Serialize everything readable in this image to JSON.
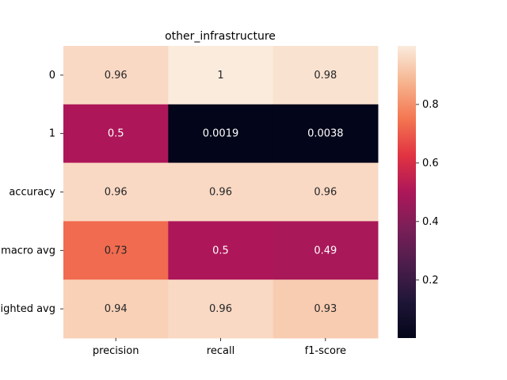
{
  "chart_data": {
    "type": "heatmap",
    "title": "other_infrastructure",
    "xlabel": "",
    "ylabel": "",
    "columns": [
      "precision",
      "recall",
      "f1-score"
    ],
    "rows": [
      "0",
      "1",
      "accuracy",
      "macro avg",
      "weighted avg"
    ],
    "values": [
      [
        0.96,
        1,
        0.98
      ],
      [
        0.5,
        0.0019,
        0.0038
      ],
      [
        0.96,
        0.96,
        0.96
      ],
      [
        0.73,
        0.5,
        0.49
      ],
      [
        0.94,
        0.96,
        0.93
      ]
    ],
    "labels": [
      [
        "0.96",
        "1",
        "0.98"
      ],
      [
        "0.5",
        "0.0019",
        "0.0038"
      ],
      [
        "0.96",
        "0.96",
        "0.96"
      ],
      [
        "0.73",
        "0.5",
        "0.49"
      ],
      [
        "0.94",
        "0.96",
        "0.93"
      ]
    ],
    "colormap": "rocket",
    "colorbar": {
      "range": [
        0.0019,
        1
      ],
      "ticks": [
        0.2,
        0.4,
        0.6,
        0.8
      ],
      "tick_labels": [
        "0.2",
        "0.4",
        "0.6",
        "0.8"
      ]
    },
    "grid": false,
    "legend": "colorbar-right"
  }
}
